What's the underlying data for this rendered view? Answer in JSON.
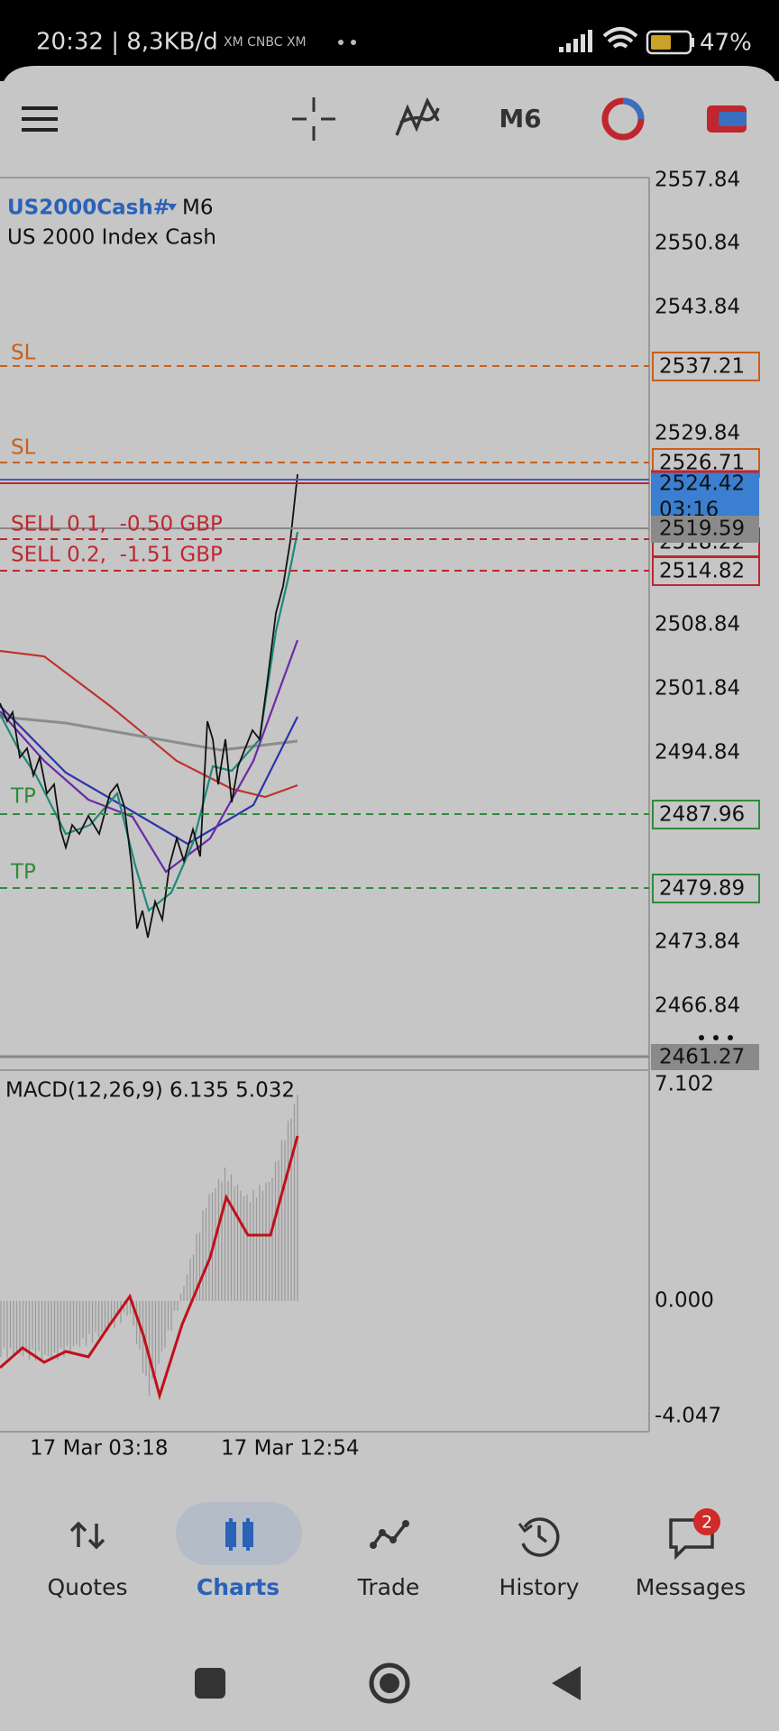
{
  "status_bar": {
    "info": "20:32 | 8,3KB/d",
    "notification_icons": "XM CNBC XM",
    "battery": "47%"
  },
  "toolbar": {
    "timeframe": "M6"
  },
  "chart": {
    "symbol": "US2000Cash#",
    "timeframe": "M6",
    "description": "US 2000 Index Cash",
    "price_axis": [
      "2557.84",
      "2550.84",
      "2543.84",
      "2529.84",
      "2508.84",
      "2501.84",
      "2494.84",
      "2473.84",
      "2466.84"
    ],
    "order_lines": [
      {
        "label": "SL",
        "price": "2537.21"
      },
      {
        "label": "SL",
        "price": "2526.71"
      },
      {
        "label": "SELL 0.1,  -0.50 GBP",
        "price": "2518.22"
      },
      {
        "label": "SELL 0.2,  -1.51 GBP",
        "price": "2514.82"
      },
      {
        "label": "TP",
        "price": "2487.96"
      },
      {
        "label": "TP",
        "price": "2479.89"
      }
    ],
    "ask_price": "2524.42",
    "bar_countdown": "03:16",
    "bid_price": "2519.59",
    "bottom_price": "2461.27",
    "macd": {
      "label": "MACD(12,26,9) 6.135 5.032",
      "axis": [
        "7.102",
        "0.000",
        "-4.047"
      ]
    },
    "time_axis": [
      "17 Mar 03:18",
      "17 Mar 12:54"
    ]
  },
  "bottom_nav": {
    "tabs": [
      "Quotes",
      "Charts",
      "Trade",
      "History",
      "Messages"
    ],
    "active": "Charts",
    "messages_badge": "2"
  }
}
